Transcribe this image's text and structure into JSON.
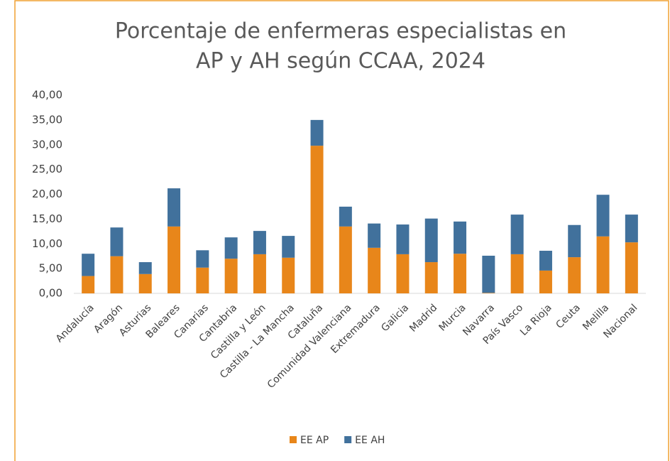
{
  "chart_data": {
    "type": "stacked_bar",
    "title": [
      "Porcentaje de enfermeras especialistas en",
      "AP y AH según CCAA, 2024"
    ],
    "categories": [
      "Andalucía",
      "Aragón",
      "Asturias",
      "Baleares",
      "Canarias",
      "Cantabria",
      "Castilla y León",
      "Castilla - La Mancha",
      "Cataluña",
      "Comunidad Valenciana",
      "Extremadura",
      "Galicia",
      "Madrid",
      "Murcia",
      "Navarra",
      "País Vasco",
      "La Rioja",
      "Ceuta",
      "Melilla",
      "Nacional"
    ],
    "series": [
      {
        "name": "EE AP",
        "color": "#e8861a",
        "values": [
          3.5,
          7.5,
          3.9,
          13.5,
          5.2,
          7.0,
          7.9,
          7.2,
          29.8,
          13.5,
          9.2,
          7.9,
          6.3,
          8.0,
          0.1,
          7.9,
          4.6,
          7.3,
          11.5,
          10.3
        ]
      },
      {
        "name": "EE AH",
        "color": "#41719c",
        "values": [
          4.5,
          5.8,
          2.4,
          7.7,
          3.5,
          4.3,
          4.7,
          4.4,
          5.2,
          4.0,
          4.9,
          6.0,
          8.8,
          6.5,
          7.5,
          8.0,
          4.0,
          6.5,
          8.4,
          5.6
        ]
      }
    ],
    "ylim": [
      0,
      40
    ],
    "yticks": [
      {
        "value": 0,
        "label": "0,00"
      },
      {
        "value": 5,
        "label": "5,00"
      },
      {
        "value": 10,
        "label": "10,00"
      },
      {
        "value": 15,
        "label": "15,00"
      },
      {
        "value": 20,
        "label": "20,00"
      },
      {
        "value": 25,
        "label": "25,00"
      },
      {
        "value": 30,
        "label": "30,00"
      },
      {
        "value": 35,
        "label": "35,00"
      },
      {
        "value": 40,
        "label": "40,00"
      }
    ],
    "legend": "bottom"
  }
}
